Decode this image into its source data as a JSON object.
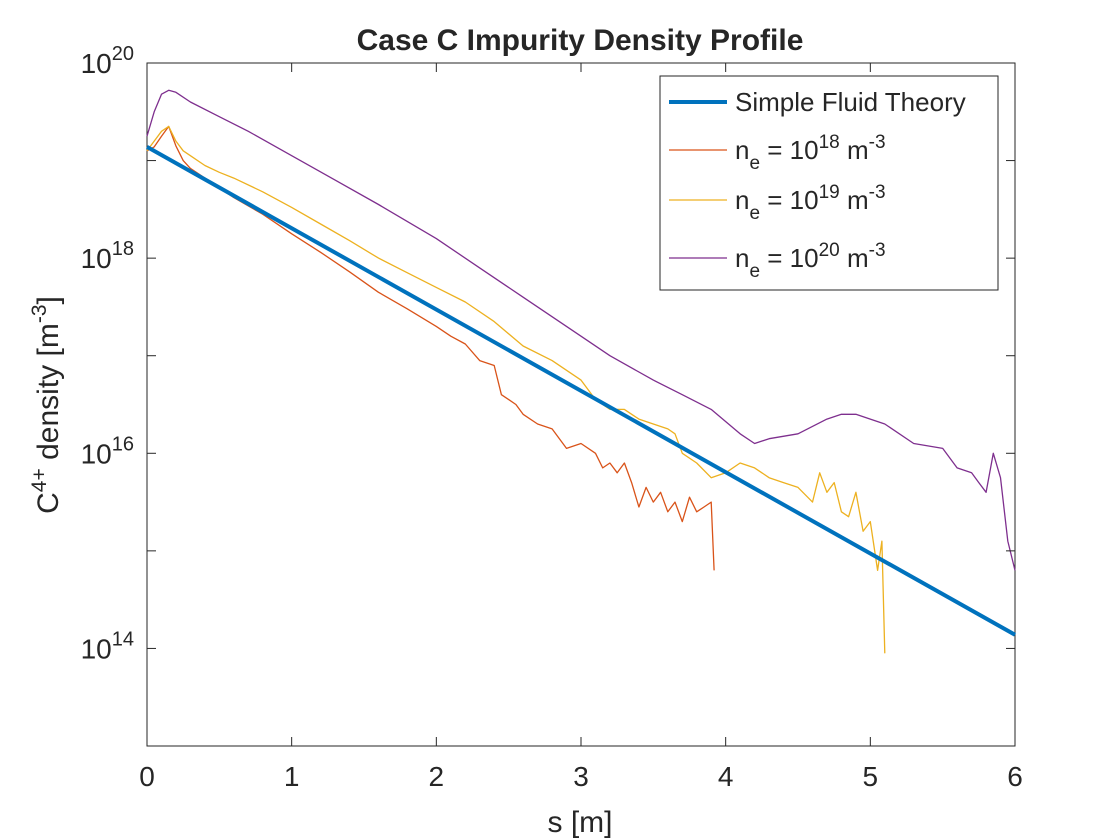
{
  "chart_data": {
    "type": "line",
    "title": "Case C Impurity Density Profile",
    "xlabel": "s [m]",
    "ylabel": {
      "base": "C",
      "sup": "4+",
      "rest": " density [m",
      "unit_sup": "-3",
      "close": "]"
    },
    "xlim": [
      0,
      6
    ],
    "ylim_log10": [
      13,
      20
    ],
    "yscale": "log",
    "grid": false,
    "legend_placement": "top-right",
    "x_ticks": [
      "0",
      "1",
      "2",
      "3",
      "4",
      "5",
      "6"
    ],
    "x_tick_values": [
      0,
      1,
      2,
      3,
      4,
      5,
      6
    ],
    "y_ticks": [
      {
        "base": "10",
        "exp": "14",
        "log10": 14
      },
      {
        "base": "10",
        "exp": "16",
        "log10": 16
      },
      {
        "base": "10",
        "exp": "18",
        "log10": 18
      },
      {
        "base": "10",
        "exp": "20",
        "log10": 20
      }
    ],
    "series": [
      {
        "label": {
          "main": "Simple Fluid Theory"
        },
        "color": "#0072BD",
        "width": 4,
        "x": [
          0,
          6
        ],
        "log10_y": [
          19.14,
          14.14
        ]
      },
      {
        "label": {
          "pre": "n",
          "sub": "e",
          "mid": " = 10",
          "sup": "18",
          "post": " m",
          "post_sup": "-3"
        },
        "color": "#D95319",
        "width": 1.3,
        "x": [
          0,
          0.05,
          0.1,
          0.15,
          0.2,
          0.25,
          0.3,
          0.4,
          0.5,
          0.6,
          0.8,
          1.0,
          1.2,
          1.4,
          1.6,
          1.8,
          2.0,
          2.1,
          2.2,
          2.3,
          2.4,
          2.45,
          2.5,
          2.55,
          2.6,
          2.7,
          2.8,
          2.9,
          3.0,
          3.1,
          3.15,
          3.2,
          3.25,
          3.3,
          3.35,
          3.4,
          3.45,
          3.5,
          3.55,
          3.6,
          3.65,
          3.7,
          3.75,
          3.8,
          3.85,
          3.9,
          3.92
        ],
        "log10_y": [
          19.1,
          19.14,
          19.25,
          19.35,
          19.15,
          19.0,
          18.92,
          18.82,
          18.72,
          18.62,
          18.45,
          18.25,
          18.06,
          17.86,
          17.65,
          17.48,
          17.3,
          17.2,
          17.12,
          16.95,
          16.9,
          16.6,
          16.55,
          16.5,
          16.4,
          16.3,
          16.25,
          16.05,
          16.1,
          16.0,
          15.85,
          15.9,
          15.8,
          15.9,
          15.7,
          15.45,
          15.65,
          15.5,
          15.6,
          15.4,
          15.5,
          15.3,
          15.55,
          15.4,
          15.45,
          15.5,
          14.8
        ]
      },
      {
        "label": {
          "pre": "n",
          "sub": "e",
          "mid": " = 10",
          "sup": "19",
          "post": " m",
          "post_sup": "-3"
        },
        "color": "#EDB120",
        "width": 1.3,
        "x": [
          0,
          0.05,
          0.1,
          0.15,
          0.2,
          0.25,
          0.3,
          0.4,
          0.5,
          0.6,
          0.8,
          1.0,
          1.2,
          1.4,
          1.6,
          1.8,
          2.0,
          2.2,
          2.4,
          2.6,
          2.8,
          3.0,
          3.1,
          3.2,
          3.3,
          3.4,
          3.5,
          3.6,
          3.65,
          3.7,
          3.8,
          3.9,
          4.0,
          4.1,
          4.2,
          4.3,
          4.4,
          4.5,
          4.6,
          4.65,
          4.7,
          4.75,
          4.8,
          4.85,
          4.9,
          4.95,
          5.0,
          5.05,
          5.08,
          5.1
        ],
        "log10_y": [
          19.1,
          19.2,
          19.3,
          19.35,
          19.2,
          19.1,
          19.05,
          18.95,
          18.88,
          18.82,
          18.68,
          18.52,
          18.35,
          18.18,
          18.0,
          17.85,
          17.7,
          17.55,
          17.35,
          17.1,
          16.95,
          16.75,
          16.55,
          16.45,
          16.45,
          16.35,
          16.3,
          16.25,
          16.2,
          16.0,
          15.9,
          15.75,
          15.8,
          15.9,
          15.85,
          15.75,
          15.7,
          15.65,
          15.5,
          15.8,
          15.6,
          15.7,
          15.4,
          15.35,
          15.6,
          15.2,
          15.3,
          14.8,
          15.1,
          13.95
        ]
      },
      {
        "label": {
          "pre": "n",
          "sub": "e",
          "mid": " = 10",
          "sup": "20",
          "post": " m",
          "post_sup": "-3"
        },
        "color": "#7E2F8E",
        "width": 1.3,
        "x": [
          0,
          0.05,
          0.1,
          0.15,
          0.2,
          0.3,
          0.5,
          0.7,
          1.0,
          1.3,
          1.6,
          2.0,
          2.3,
          2.6,
          3.0,
          3.2,
          3.5,
          3.7,
          3.9,
          4.1,
          4.2,
          4.3,
          4.5,
          4.7,
          4.8,
          4.9,
          5.0,
          5.1,
          5.3,
          5.5,
          5.6,
          5.7,
          5.75,
          5.8,
          5.85,
          5.9,
          5.95,
          6.0
        ],
        "log10_y": [
          19.25,
          19.5,
          19.68,
          19.72,
          19.7,
          19.6,
          19.45,
          19.3,
          19.05,
          18.8,
          18.55,
          18.2,
          17.9,
          17.6,
          17.2,
          17.0,
          16.75,
          16.6,
          16.45,
          16.2,
          16.1,
          16.15,
          16.2,
          16.35,
          16.4,
          16.4,
          16.35,
          16.3,
          16.1,
          16.05,
          15.85,
          15.8,
          15.7,
          15.6,
          16.0,
          15.75,
          15.1,
          14.8
        ]
      }
    ]
  }
}
